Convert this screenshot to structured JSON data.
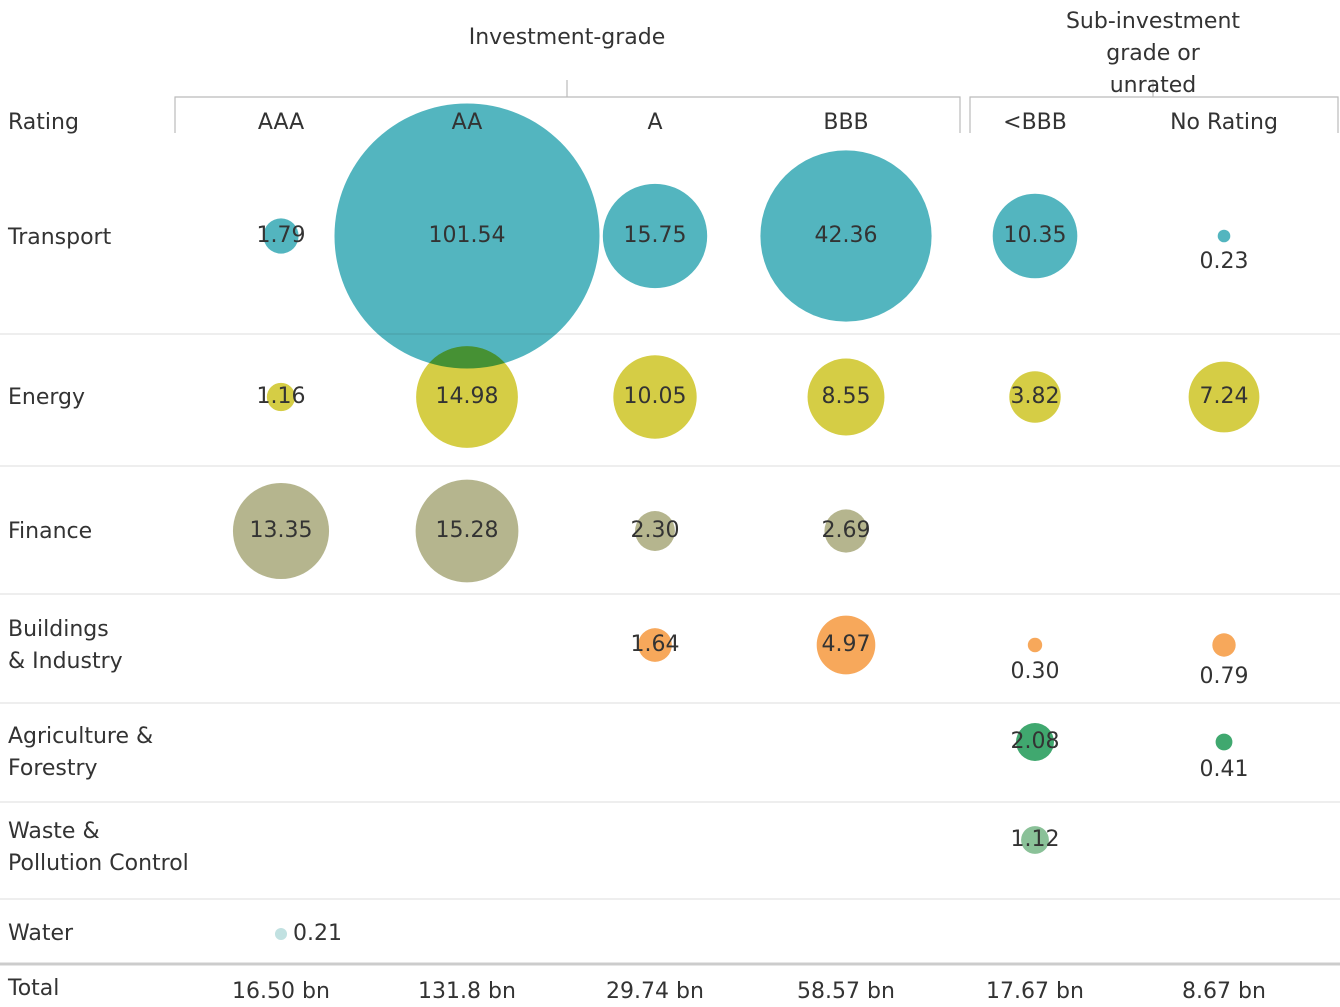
{
  "chart_data": {
    "type": "bubble",
    "row_header": "Rating",
    "groups": [
      "Investment-grade",
      "Sub-investment grade or\nunrated"
    ],
    "categories": [
      "AAA",
      "AA",
      "A",
      "BBB",
      "<BBB",
      "No Rating"
    ],
    "series": [
      {
        "name": "Transport",
        "color": "#4db3bd",
        "values": [
          1.79,
          101.54,
          15.75,
          42.36,
          10.35,
          0.23
        ],
        "value_labels": [
          "1.79",
          "101.54",
          "15.75",
          "42.36",
          "10.35",
          "0.23"
        ]
      },
      {
        "name": "Energy",
        "color": "#d4cc3f",
        "values": [
          1.16,
          14.98,
          10.05,
          8.55,
          3.82,
          7.24
        ],
        "value_labels": [
          "1.16",
          "14.98",
          "10.05",
          "8.55",
          "3.82",
          "7.24"
        ]
      },
      {
        "name": "Finance",
        "color": "#b3b38a",
        "values": [
          13.35,
          15.28,
          2.3,
          2.69,
          null,
          null
        ],
        "value_labels": [
          "13.35",
          "15.28",
          "2.30",
          "2.69",
          null,
          null
        ]
      },
      {
        "name": "Buildings\n& Industry",
        "color": "#f7a556",
        "values": [
          null,
          null,
          1.64,
          4.97,
          0.3,
          0.79
        ],
        "value_labels": [
          null,
          null,
          "1.64",
          "4.97",
          "0.30",
          "0.79"
        ]
      },
      {
        "name": "Agriculture &\nForestry",
        "color": "#3aa56a",
        "values": [
          null,
          null,
          null,
          null,
          2.08,
          0.41
        ],
        "value_labels": [
          null,
          null,
          null,
          null,
          "2.08",
          "0.41"
        ]
      },
      {
        "name": "Waste &\nPollution Control",
        "color": "#86bf95",
        "values": [
          null,
          null,
          null,
          null,
          1.12,
          null
        ],
        "value_labels": [
          null,
          null,
          null,
          null,
          "1.12",
          null
        ]
      },
      {
        "name": "Water",
        "color": "#bfe0e0",
        "values": [
          0.21,
          null,
          null,
          null,
          null,
          null
        ],
        "value_labels": [
          "0.21",
          null,
          null,
          null,
          null,
          null
        ]
      }
    ],
    "total_label": "Total",
    "totals": [
      "16.50 bn",
      "131.8 bn",
      "29.74 bn",
      "58.57 bn",
      "17.67 bn",
      "8.67 bn"
    ]
  }
}
